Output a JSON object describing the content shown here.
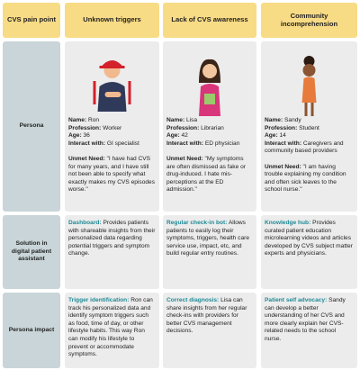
{
  "header": {
    "row_label": "CVS pain point",
    "columns": [
      "Unknown triggers",
      "Lack of CVS awareness",
      "Community incomprehension"
    ]
  },
  "rows": {
    "persona": "Persona",
    "solution": "Solution in digital patient assistant",
    "impact": "Persona impact"
  },
  "personas": [
    {
      "fields": [
        {
          "label": "Name:",
          "value": "Ron"
        },
        {
          "label": "Profession:",
          "value": "Worker"
        },
        {
          "label": "Age:",
          "value": "36"
        },
        {
          "label": "Interact with:",
          "value": "GI specialist"
        }
      ],
      "need_label": "Unmet Need:",
      "need": "\"I have had CVS for many years, and I have still not been able to specify what exactly makes my CVS episodes worse.\""
    },
    {
      "fields": [
        {
          "label": "Name:",
          "value": "Lisa"
        },
        {
          "label": "Profession:",
          "value": "Librarian"
        },
        {
          "label": "Age:",
          "value": "42"
        },
        {
          "label": "Interact with:",
          "value": "ED physician"
        }
      ],
      "need_label": "Unmet Need:",
      "need": "\"My symptoms are often dismissed as fake or drug-induced. I hate mis-perceptions at the ED admission.\""
    },
    {
      "fields": [
        {
          "label": "Name:",
          "value": "Sandy"
        },
        {
          "label": "Profession:",
          "value": "Student"
        },
        {
          "label": "Age:",
          "value": "14"
        },
        {
          "label": "Interact with:",
          "value": "Caregivers and community based providers"
        }
      ],
      "need_label": "Unmet Need:",
      "need": "\"I am having trouble explaining my condition and often sick leaves to the school nurse.\""
    }
  ],
  "solutions": [
    {
      "title": "Dashboard:",
      "text": "Provides patients with shareable insights from their personalized data regarding potential triggers and symptom change."
    },
    {
      "title": "Regular check-in bot:",
      "text": "Allows patients to easily log their symptoms, triggers, health care service use, impact, etc, and build regular entry routines."
    },
    {
      "title": "Knowledge hub:",
      "text": "Provides curated patient education microlearning videos and articles developed by CVS subject matter experts and physicians."
    }
  ],
  "impacts": [
    {
      "title": "Trigger identification:",
      "text": "Ron can track his personalized data and identify symptom triggers such as food, time of day, or other lifestyle habits. This way Ron can modify his lifestyle to prevent or accommodate symptoms."
    },
    {
      "title": "Correct diagnosis:",
      "text": "Lisa can share insights from her regular check-ins with providers for better CVS management decisions."
    },
    {
      "title": "Patient self advocacy:",
      "text": "Sandy can develop a better understanding of her CVS and more clearly explain her CVS-related needs to the school nurse."
    }
  ]
}
